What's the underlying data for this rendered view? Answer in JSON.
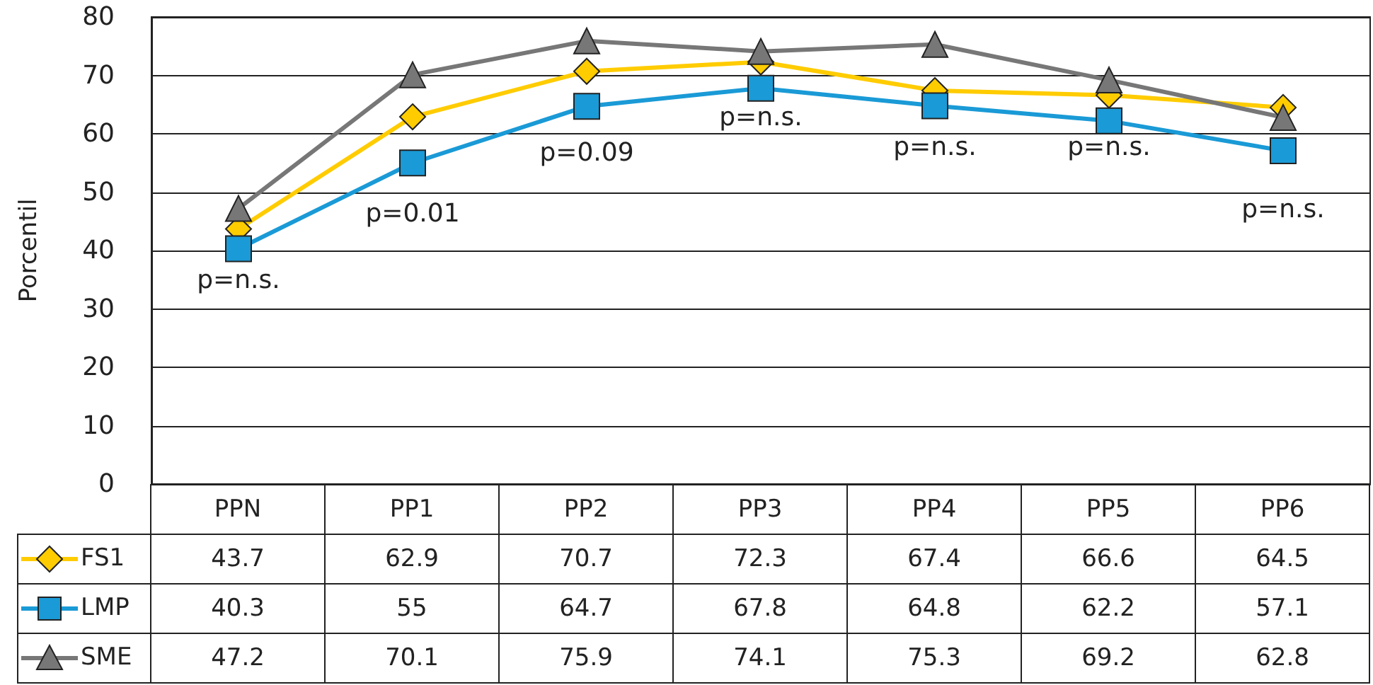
{
  "chart_data": {
    "type": "line",
    "ylabel": "Porcentil",
    "categories": [
      "PPN",
      "PP1",
      "PP2",
      "PP3",
      "PP4",
      "PP5",
      "PP6"
    ],
    "series": [
      {
        "name": "FS1",
        "color": "#ffcc00",
        "marker": "diamond",
        "values": [
          43.7,
          62.9,
          70.7,
          72.3,
          67.4,
          66.6,
          64.5
        ]
      },
      {
        "name": "LMP",
        "color": "#1a9ad6",
        "marker": "square",
        "values": [
          40.3,
          55,
          64.7,
          67.8,
          64.8,
          62.2,
          57.1
        ]
      },
      {
        "name": "SME",
        "color": "#777777",
        "marker": "triangle",
        "values": [
          47.2,
          70.1,
          75.9,
          74.1,
          75.3,
          69.2,
          62.8
        ]
      }
    ],
    "ylim": [
      0,
      80
    ],
    "yticks": [
      0,
      10,
      20,
      30,
      40,
      50,
      60,
      70,
      80
    ],
    "grid": "y",
    "legend": "bottom",
    "data_labels": true,
    "annotations": [
      "p=n.s.",
      "p=0.01",
      "p=0.09",
      "p=n.s.",
      "p=n.s.",
      "p=n.s.",
      "p=n.s."
    ]
  }
}
